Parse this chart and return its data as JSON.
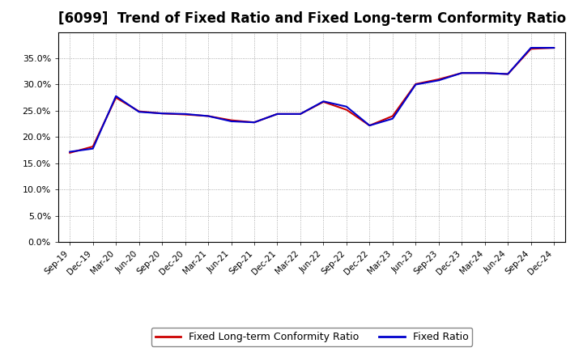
{
  "title": "[6099]  Trend of Fixed Ratio and Fixed Long-term Conformity Ratio",
  "x_labels": [
    "Sep-19",
    "Dec-19",
    "Mar-20",
    "Jun-20",
    "Sep-20",
    "Dec-20",
    "Mar-21",
    "Jun-21",
    "Sep-21",
    "Dec-21",
    "Mar-22",
    "Jun-22",
    "Sep-22",
    "Dec-22",
    "Mar-23",
    "Jun-23",
    "Sep-23",
    "Dec-23",
    "Mar-24",
    "Jun-24",
    "Sep-24",
    "Dec-24"
  ],
  "fixed_ratio": [
    0.172,
    0.178,
    0.278,
    0.248,
    0.245,
    0.244,
    0.24,
    0.23,
    0.228,
    0.244,
    0.244,
    0.268,
    0.258,
    0.222,
    0.235,
    0.3,
    0.308,
    0.322,
    0.322,
    0.32,
    0.37,
    0.37
  ],
  "fixed_lt_ratio": [
    0.17,
    0.182,
    0.275,
    0.249,
    0.245,
    0.243,
    0.24,
    0.232,
    0.228,
    0.244,
    0.244,
    0.267,
    0.252,
    0.222,
    0.24,
    0.301,
    0.31,
    0.322,
    0.322,
    0.32,
    0.368,
    0.37
  ],
  "fixed_ratio_color": "#0000cc",
  "fixed_lt_ratio_color": "#cc0000",
  "ylim": [
    0.0,
    0.4
  ],
  "yticks": [
    0.0,
    0.05,
    0.1,
    0.15,
    0.2,
    0.25,
    0.3,
    0.35
  ],
  "background_color": "#ffffff",
  "plot_bg_color": "#ffffff",
  "grid_color": "#999999",
  "title_fontsize": 12,
  "legend_fontsize": 9,
  "line_width": 1.5
}
